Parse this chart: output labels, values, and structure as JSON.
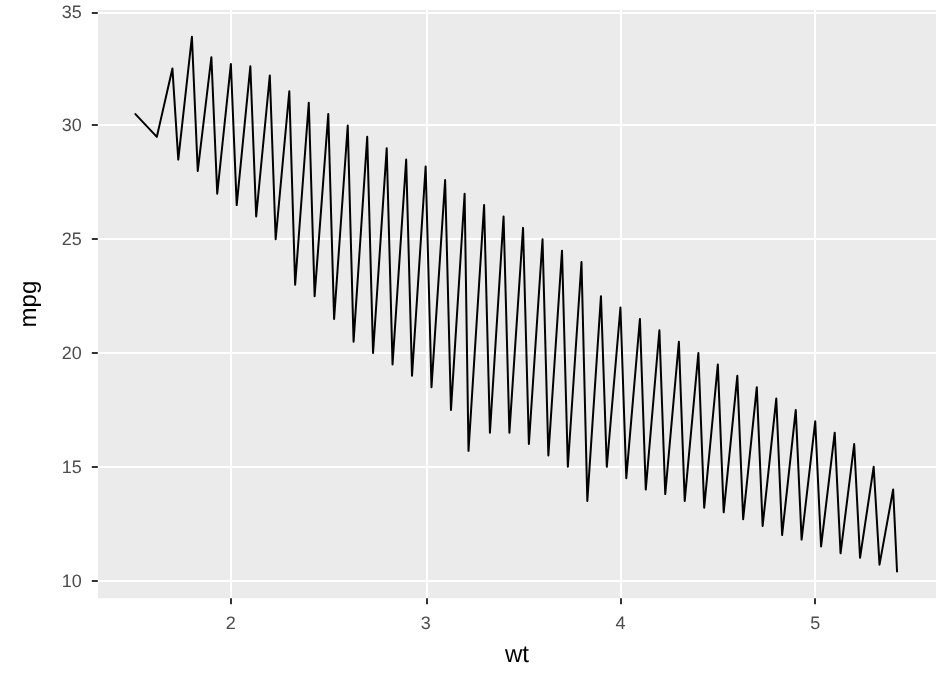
{
  "chart_data": {
    "type": "line",
    "xlabel": "wt",
    "ylabel": "mpg",
    "xlim": [
      1.317,
      5.62
    ],
    "ylim": [
      9.225,
      35.075
    ],
    "xticks": [
      2,
      3,
      4,
      5
    ],
    "yticks": [
      10,
      15,
      20,
      25,
      30,
      35
    ],
    "grid": true,
    "marker": "none",
    "line_style": "solid",
    "series": [
      {
        "color": "#000000",
        "x": [
          1.51,
          1.62,
          1.7,
          1.73,
          1.8,
          1.83,
          1.9,
          1.93,
          2.0,
          2.03,
          2.1,
          2.13,
          2.2,
          2.23,
          2.3,
          2.33,
          2.4,
          2.43,
          2.5,
          2.53,
          2.6,
          2.63,
          2.7,
          2.73,
          2.8,
          2.83,
          2.9,
          2.93,
          3.0,
          3.03,
          3.1,
          3.13,
          3.2,
          3.22,
          3.3,
          3.33,
          3.4,
          3.43,
          3.5,
          3.53,
          3.6,
          3.63,
          3.7,
          3.73,
          3.8,
          3.83,
          3.9,
          3.93,
          4.0,
          4.03,
          4.1,
          4.13,
          4.2,
          4.23,
          4.3,
          4.33,
          4.4,
          4.43,
          4.5,
          4.53,
          4.6,
          4.63,
          4.7,
          4.73,
          4.8,
          4.83,
          4.9,
          4.93,
          5.0,
          5.03,
          5.1,
          5.13,
          5.2,
          5.23,
          5.3,
          5.33,
          5.4,
          5.42
        ],
        "values": [
          30.5,
          29.5,
          32.5,
          28.5,
          33.9,
          28,
          33,
          27,
          32.7,
          26.5,
          32.6,
          26,
          32.2,
          25,
          31.5,
          23,
          31,
          22.5,
          30.5,
          21.5,
          30,
          20.5,
          29.5,
          20,
          29,
          19.5,
          28.5,
          19,
          28.2,
          18.5,
          27.6,
          17.5,
          27,
          15.7,
          26.5,
          16.5,
          26,
          16.5,
          25.5,
          16,
          25,
          15.5,
          24.5,
          15,
          24,
          13.5,
          22.5,
          15,
          22,
          14.5,
          21.5,
          14,
          21,
          13.8,
          20.5,
          13.5,
          20,
          13.2,
          19.5,
          13,
          19,
          12.7,
          18.5,
          12.4,
          18,
          12,
          17.5,
          11.8,
          17,
          11.5,
          16.5,
          11.2,
          16,
          11,
          15,
          10.7,
          14,
          10.4
        ]
      }
    ]
  }
}
